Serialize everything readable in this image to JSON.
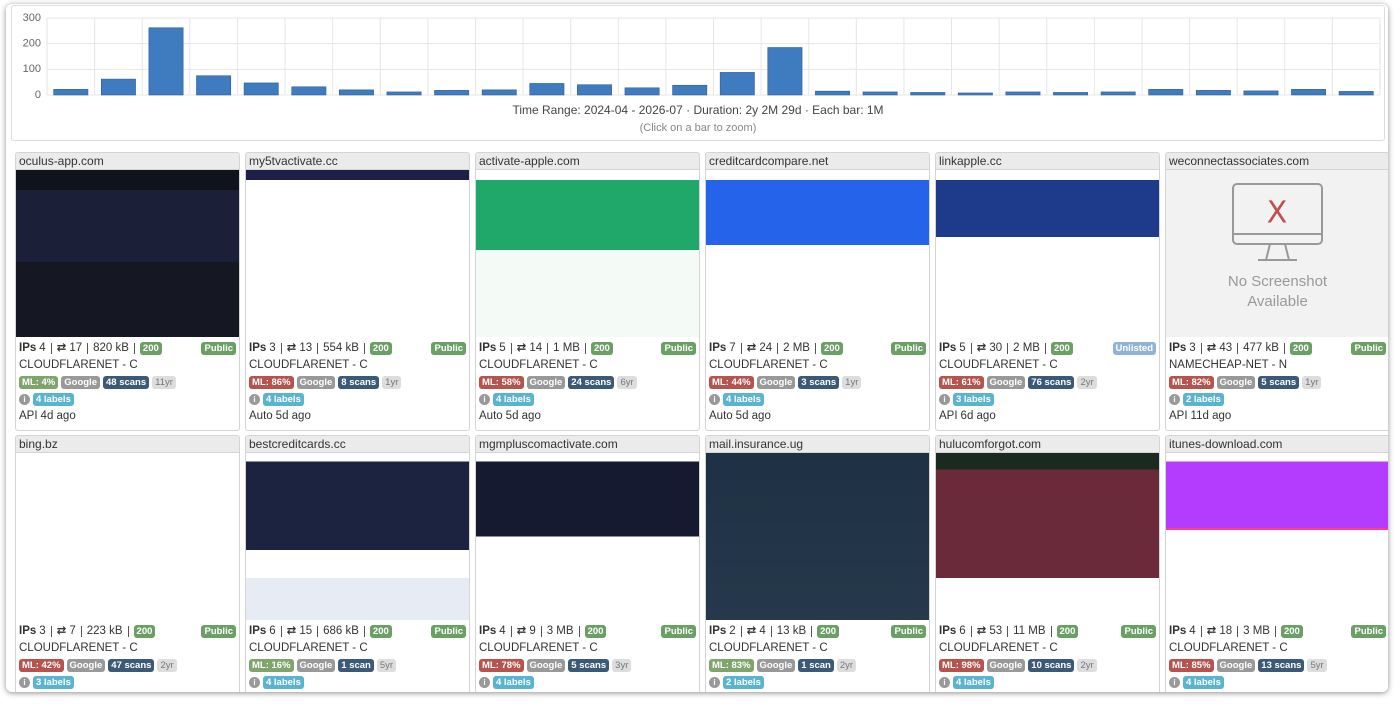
{
  "chart_data": {
    "type": "bar",
    "values": [
      22,
      62,
      262,
      75,
      47,
      32,
      20,
      12,
      18,
      20,
      45,
      40,
      28,
      38,
      88,
      185,
      15,
      12,
      10,
      8,
      12,
      10,
      12,
      22,
      18,
      16,
      22,
      14
    ],
    "color": "#3e7cbf",
    "ylim": [
      0,
      300
    ],
    "yticks": [
      0,
      100,
      200,
      300
    ],
    "grid": true,
    "caption": "Time Range: 2024-04 - 2026-07 · Duration: 2y 2M 29d · Each bar: 1M",
    "hint": "(Click on a bar to zoom)"
  },
  "ips_label": "IPs",
  "no_screenshot": "No Screenshot Available",
  "cards": [
    {
      "domain": "oculus-app.com",
      "ips": 4,
      "redirects": 17,
      "size": "820 kB",
      "status": "200",
      "visibility": "Public",
      "asn": "CLOUDFLARENET - C",
      "ml": "ML: 4%",
      "ml_color": "#7ea66b",
      "engine": "Google",
      "scans": "48 scans",
      "age": "11yr",
      "labels": "4 labels",
      "source": "API",
      "time": "4d ago"
    },
    {
      "domain": "my5tvactivate.cc",
      "ips": 3,
      "redirects": 13,
      "size": "554 kB",
      "status": "200",
      "visibility": "Public",
      "asn": "CLOUDFLARENET - C",
      "ml": "ML: 86%",
      "ml_color": "#b5534c",
      "engine": "Google",
      "scans": "8 scans",
      "age": "1yr",
      "labels": "4 labels",
      "source": "Auto",
      "time": "5d ago"
    },
    {
      "domain": "activate-apple.com",
      "ips": 5,
      "redirects": 14,
      "size": "1 MB",
      "status": "200",
      "visibility": "Public",
      "asn": "CLOUDFLARENET - C",
      "ml": "ML: 58%",
      "ml_color": "#b5534c",
      "engine": "Google",
      "scans": "24 scans",
      "age": "6yr",
      "labels": "4 labels",
      "source": "Auto",
      "time": "5d ago"
    },
    {
      "domain": "creditcardcompare.net",
      "ips": 7,
      "redirects": 24,
      "size": "2 MB",
      "status": "200",
      "visibility": "Public",
      "asn": "CLOUDFLARENET - C",
      "ml": "ML: 44%",
      "ml_color": "#b5534c",
      "engine": "Google",
      "scans": "3 scans",
      "age": "1yr",
      "labels": "4 labels",
      "source": "Auto",
      "time": "5d ago"
    },
    {
      "domain": "linkapple.cc",
      "ips": 5,
      "redirects": 30,
      "size": "2 MB",
      "status": "200",
      "visibility": "Unlisted",
      "asn": "CLOUDFLARENET - C",
      "ml": "ML: 61%",
      "ml_color": "#b5534c",
      "engine": "Google",
      "scans": "76 scans",
      "age": "2yr",
      "labels": "3 labels",
      "source": "API",
      "time": "6d ago"
    },
    {
      "domain": "weconnectassociates.com",
      "ips": 3,
      "redirects": 43,
      "size": "477 kB",
      "status": "200",
      "visibility": "Public",
      "asn": "NAMECHEAP-NET - N",
      "ml": "ML: 82%",
      "ml_color": "#b5534c",
      "engine": "Google",
      "scans": "5 scans",
      "age": "1yr",
      "labels": "2 labels",
      "source": "API",
      "time": "11d ago"
    },
    {
      "domain": "bing.bz",
      "ips": 3,
      "redirects": 7,
      "size": "223 kB",
      "status": "200",
      "visibility": "Public",
      "asn": "CLOUDFLARENET - C",
      "ml": "ML: 42%",
      "ml_color": "#b5534c",
      "engine": "Google",
      "scans": "47 scans",
      "age": "2yr",
      "labels": "3 labels"
    },
    {
      "domain": "bestcreditcards.cc",
      "ips": 6,
      "redirects": 15,
      "size": "686 kB",
      "status": "200",
      "visibility": "Public",
      "asn": "CLOUDFLARENET - C",
      "ml": "ML: 16%",
      "ml_color": "#7ea66b",
      "engine": "Google",
      "scans": "1 scan",
      "age": "5yr",
      "labels": "4 labels"
    },
    {
      "domain": "mgmpluscomactivate.com",
      "ips": 4,
      "redirects": 9,
      "size": "3 MB",
      "status": "200",
      "visibility": "Public",
      "asn": "CLOUDFLARENET - C",
      "ml": "ML: 78%",
      "ml_color": "#b5534c",
      "engine": "Google",
      "scans": "5 scans",
      "age": "3yr",
      "labels": "4 labels"
    },
    {
      "domain": "mail.insurance.ug",
      "ips": 2,
      "redirects": 4,
      "size": "13 kB",
      "status": "200",
      "visibility": "Public",
      "asn": "CLOUDFLARENET - C",
      "ml": "ML: 83%",
      "ml_color": "#7ea66b",
      "engine": "Google",
      "scans": "1 scan",
      "age": "2yr",
      "labels": "2 labels"
    },
    {
      "domain": "hulucomforgot.com",
      "ips": 6,
      "redirects": 53,
      "size": "11 MB",
      "status": "200",
      "visibility": "Public",
      "asn": "CLOUDFLARENET - C",
      "ml": "ML: 98%",
      "ml_color": "#b5534c",
      "engine": "Google",
      "scans": "10 scans",
      "age": "2yr",
      "labels": "4 labels"
    },
    {
      "domain": "itunes-download.com",
      "ips": 4,
      "redirects": 18,
      "size": "3 MB",
      "status": "200",
      "visibility": "Public",
      "asn": "CLOUDFLARENET - C",
      "ml": "ML: 85%",
      "ml_color": "#b5534c",
      "engine": "Google",
      "scans": "13 scans",
      "age": "5yr",
      "labels": "4 labels"
    }
  ]
}
